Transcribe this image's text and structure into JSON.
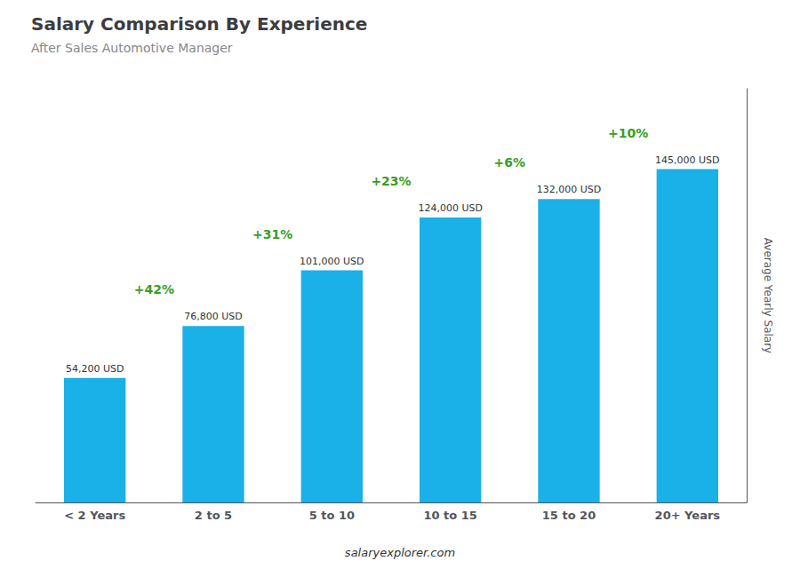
{
  "chart_data": {
    "type": "bar",
    "title": "Salary Comparison By Experience",
    "subtitle": "After Sales Automotive Manager",
    "categories": [
      "< 2 Years",
      "2 to 5",
      "5 to 10",
      "10 to 15",
      "15 to 20",
      "20+ Years"
    ],
    "values": [
      54200,
      76800,
      101000,
      124000,
      132000,
      145000
    ],
    "value_labels": [
      "54,200 USD",
      "76,800 USD",
      "101,000 USD",
      "124,000 USD",
      "132,000 USD",
      "145,000 USD"
    ],
    "data_labels": true,
    "annotations": [
      "+42%",
      "+31%",
      "+23%",
      "+6%",
      "+10%"
    ],
    "color": "#1ab0e8",
    "ylabel": "Average Yearly Salary",
    "ylim": [
      0,
      180000
    ],
    "tick_labels": "x",
    "grid": false,
    "footer": "salaryexplorer.com"
  }
}
